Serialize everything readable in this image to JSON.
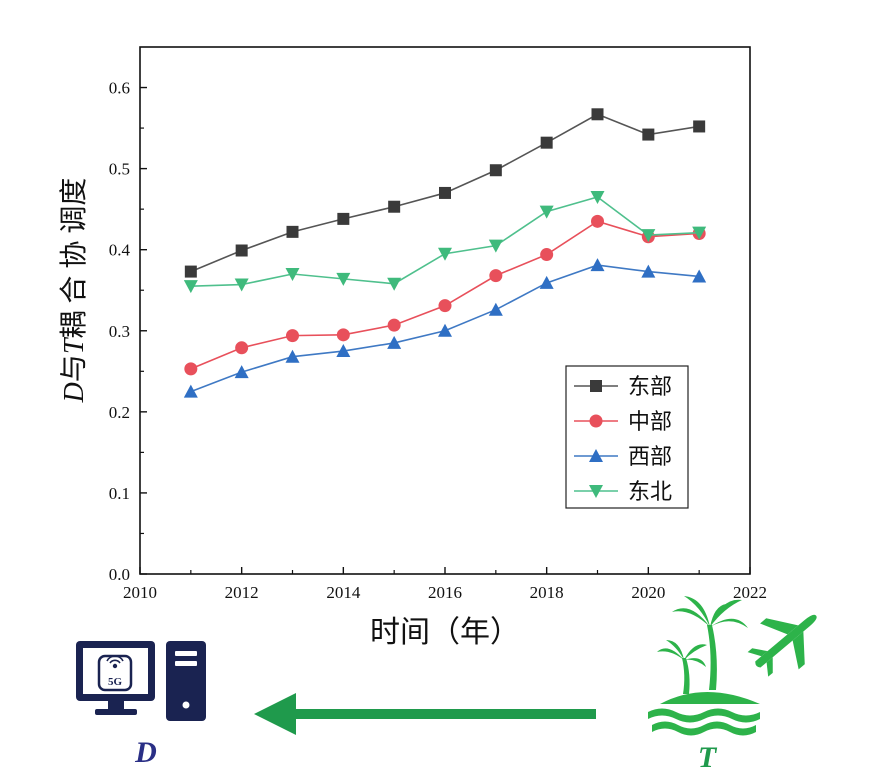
{
  "chart_data": {
    "type": "line",
    "title": "",
    "xlabel": "时间（年）",
    "ylabel_prefix": "D",
    "ylabel_mid": "与",
    "ylabel_t": "T",
    "ylabel_suffix": "耦 合 协 调度",
    "xlim": [
      2010,
      2022
    ],
    "ylim": [
      0.0,
      0.65
    ],
    "xticks": [
      2010,
      2012,
      2014,
      2016,
      2018,
      2020,
      2022
    ],
    "xtick_labels": [
      "2010",
      "2012",
      "2014",
      "2016",
      "2018",
      "2020",
      "2022"
    ],
    "yticks": [
      0.0,
      0.1,
      0.2,
      0.3,
      0.4,
      0.5,
      0.6
    ],
    "ytick_labels": [
      "0.0",
      "0.1",
      "0.2",
      "0.3",
      "0.4",
      "0.5",
      "0.6"
    ],
    "grid": false,
    "legend_position": "lower-right",
    "x": [
      2011,
      2012,
      2013,
      2014,
      2015,
      2016,
      2017,
      2018,
      2019,
      2020,
      2021
    ],
    "series": [
      {
        "name": "东部",
        "marker": "square",
        "color": "#555555",
        "marker_color": "#3a3a3a",
        "values": [
          0.373,
          0.399,
          0.422,
          0.438,
          0.453,
          0.47,
          0.498,
          0.532,
          0.567,
          0.542,
          0.552
        ]
      },
      {
        "name": "中部",
        "marker": "circle",
        "color": "#e8505b",
        "marker_color": "#e8505b",
        "values": [
          0.253,
          0.279,
          0.294,
          0.295,
          0.307,
          0.331,
          0.368,
          0.394,
          0.435,
          0.416,
          0.42
        ]
      },
      {
        "name": "西部",
        "marker": "triangle-up",
        "color": "#3f79c4",
        "marker_color": "#2f6fc4",
        "values": [
          0.225,
          0.249,
          0.268,
          0.275,
          0.285,
          0.3,
          0.326,
          0.359,
          0.381,
          0.373,
          0.367
        ]
      },
      {
        "name": "东北",
        "marker": "triangle-down",
        "color": "#4fc08d",
        "marker_color": "#3fba7c",
        "values": [
          0.355,
          0.357,
          0.37,
          0.364,
          0.358,
          0.395,
          0.405,
          0.447,
          0.465,
          0.418,
          0.421
        ]
      }
    ]
  },
  "diagram": {
    "left_label": "D",
    "right_label": "T",
    "badge_text": "5G",
    "icons": [
      "computer-monitor-icon",
      "computer-tower-icon",
      "island-palm-tree-icon",
      "airplane-icon",
      "arrow-left-icon"
    ],
    "colors": {
      "navy": "#1a2351",
      "green": "#2db34a",
      "arrow_green": "#1f9a4c",
      "label_navy": "#2a2f86",
      "label_green": "#1f9a4c"
    }
  }
}
